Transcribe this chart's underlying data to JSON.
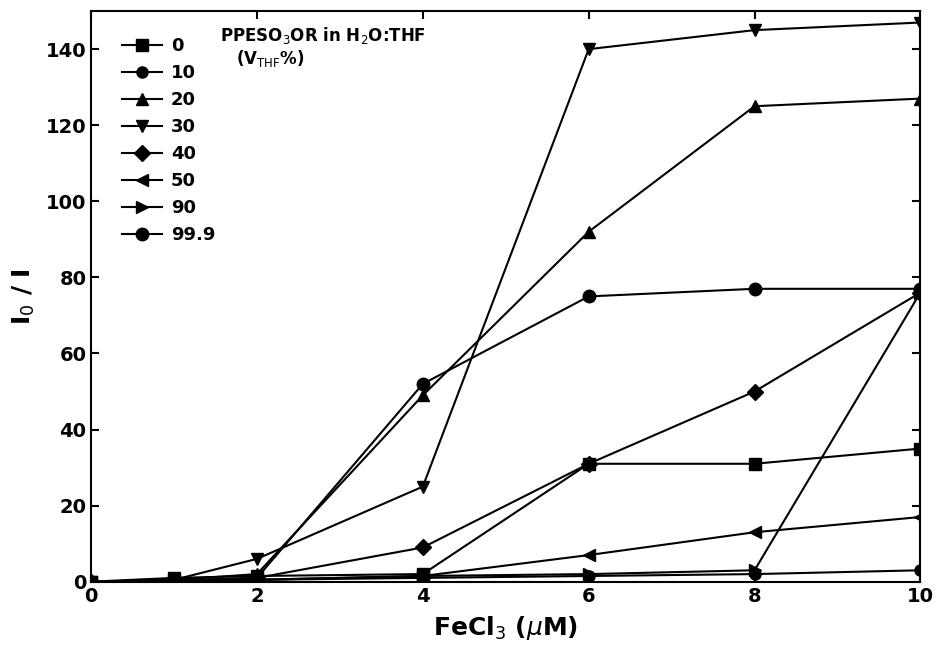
{
  "xlabel": "FeCl$_3$ ($\\mu$M)",
  "ylabel": "I$_0$ / I",
  "xlim": [
    0,
    10
  ],
  "ylim": [
    0,
    150
  ],
  "xticks": [
    0,
    2,
    4,
    6,
    8,
    10
  ],
  "yticks": [
    0,
    20,
    40,
    60,
    80,
    100,
    120,
    140
  ],
  "legend_title1": "PPESO$_3$OR in H$_2$O:THF",
  "legend_title2": "(V$_{\\mathrm{THF}}$%)",
  "series": [
    {
      "label": "0",
      "marker": "s",
      "ms": 8,
      "x": [
        0,
        1,
        2,
        4,
        6,
        8,
        10
      ],
      "y": [
        0,
        1,
        1.5,
        2,
        31,
        31,
        35
      ]
    },
    {
      "label": "10",
      "marker": "o",
      "ms": 8,
      "x": [
        0,
        1,
        2,
        4,
        6,
        8,
        10
      ],
      "y": [
        0,
        0.3,
        0.5,
        1,
        1.5,
        2,
        3
      ]
    },
    {
      "label": "20",
      "marker": "^",
      "ms": 9,
      "x": [
        0,
        1,
        2,
        4,
        6,
        8,
        10
      ],
      "y": [
        0,
        0.5,
        2,
        49,
        92,
        125,
        127
      ]
    },
    {
      "label": "30",
      "marker": "v",
      "ms": 9,
      "x": [
        0,
        1,
        2,
        4,
        6,
        8,
        10
      ],
      "y": [
        0,
        0.5,
        6,
        25,
        140,
        145,
        147
      ]
    },
    {
      "label": "40",
      "marker": "D",
      "ms": 8,
      "x": [
        0,
        1,
        2,
        4,
        6,
        8,
        10
      ],
      "y": [
        0,
        0.3,
        1,
        9,
        31,
        50,
        76
      ]
    },
    {
      "label": "50",
      "marker": "<",
      "ms": 9,
      "x": [
        0,
        1,
        2,
        4,
        6,
        8,
        10
      ],
      "y": [
        0,
        0.3,
        0.5,
        1.5,
        7,
        13,
        17
      ]
    },
    {
      "label": "90",
      "marker": ">",
      "ms": 9,
      "x": [
        0,
        1,
        2,
        4,
        6,
        8,
        10
      ],
      "y": [
        0,
        0.3,
        0.5,
        1.5,
        2,
        3,
        76
      ]
    },
    {
      "label": "99.9",
      "marker": "o",
      "ms": 9,
      "x": [
        0,
        1,
        2,
        4,
        6,
        8,
        10
      ],
      "y": [
        0,
        0.3,
        1,
        52,
        75,
        77,
        77
      ]
    }
  ]
}
